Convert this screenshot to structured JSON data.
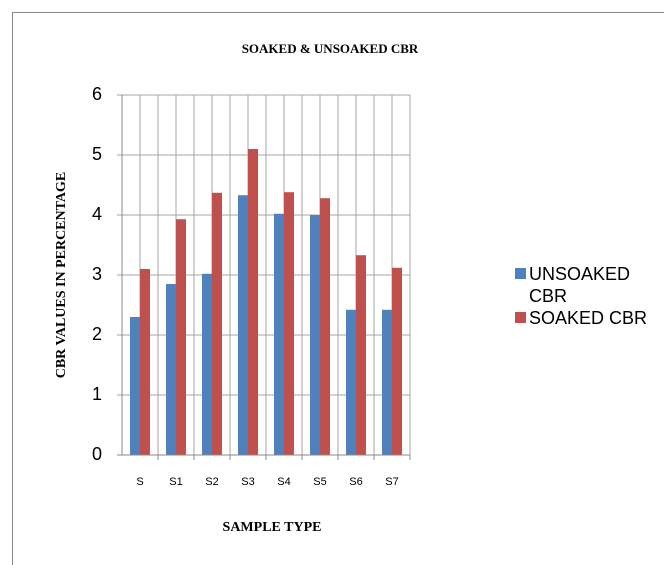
{
  "chart_data": {
    "type": "bar",
    "title": "SOAKED & UNSOAKED CBR",
    "x_label": "SAMPLE TYPE",
    "y_label": "CBR VALUES IN PERCENTAGE",
    "categories": [
      "S",
      "S1",
      "S2",
      "S3",
      "S4",
      "S5",
      "S6",
      "S7"
    ],
    "series": [
      {
        "name": "UNSOAKED CBR",
        "color": "#4f81bd",
        "values": [
          2.3,
          2.85,
          3.02,
          4.33,
          4.02,
          4.0,
          2.42,
          2.42
        ]
      },
      {
        "name": "SOAKED CBR",
        "color": "#c0504d",
        "values": [
          3.1,
          3.93,
          4.37,
          5.1,
          4.38,
          4.28,
          3.33,
          3.12
        ]
      }
    ],
    "ylim": [
      0,
      6
    ],
    "yticks": [
      0,
      1,
      2,
      3,
      4,
      5,
      6
    ],
    "grid": true,
    "legend": "right"
  }
}
